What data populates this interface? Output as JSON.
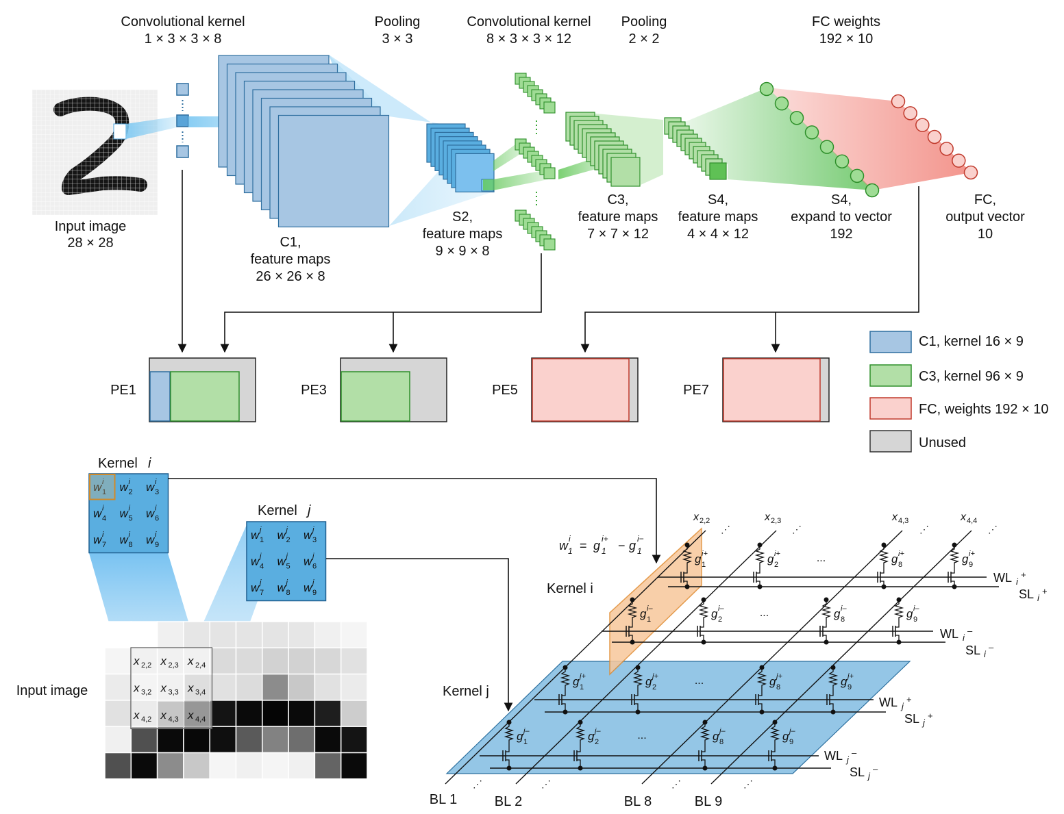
{
  "colors": {
    "c1_fill": "#a7c6e3",
    "c1_stroke": "#2f6f9f",
    "c3_fill": "#b2dfa7",
    "c3_stroke": "#2e8f2a",
    "fc_fill": "#fad1cd",
    "fc_stroke": "#c0392b",
    "unused_fill": "#d6d6d6",
    "kernel_blue": "#5aaee0",
    "array_blue": "#94c6e6",
    "highlight_orange": "#f7c79b"
  },
  "top": {
    "conv1": {
      "title": "Convolutional kernel",
      "size": "1 × 3 × 3 × 8"
    },
    "pool1": {
      "title": "Pooling",
      "size": "3 × 3"
    },
    "conv2": {
      "title": "Convolutional kernel",
      "size": "8 × 3 × 3 × 12"
    },
    "pool2": {
      "title": "Pooling",
      "size": "2 × 2"
    },
    "fc": {
      "title": "FC weights",
      "size": "192 × 10"
    },
    "input": {
      "line1": "Input image",
      "line2": "28 × 28"
    },
    "c1": {
      "line1": "C1,",
      "line2": "feature maps",
      "line3": "26 × 26 × 8"
    },
    "s2": {
      "line1": "S2,",
      "line2": "feature maps",
      "line3": "9 × 9 × 8"
    },
    "c3": {
      "line1": "C3,",
      "line2": "feature maps",
      "line3": "7 × 7 × 12"
    },
    "s4": {
      "line1": "S4,",
      "line2": "feature maps",
      "line3": "4 × 4 × 12"
    },
    "s4v": {
      "line1": "S4,",
      "line2": "expand to vector",
      "line3": "192"
    },
    "fcout": {
      "line1": "FC,",
      "line2": "output vector",
      "line3": "10"
    }
  },
  "pe": [
    "PE1",
    "PE3",
    "PE5",
    "PE7"
  ],
  "legend": [
    {
      "label": "C1, kernel 16 × 9",
      "key": "c1"
    },
    {
      "label": "C3, kernel 96 × 9",
      "key": "c3"
    },
    {
      "label": "FC, weights 192 × 10",
      "key": "fc"
    },
    {
      "label": "Unused",
      "key": "unused"
    }
  ],
  "kernel_i": {
    "title": "Kernel",
    "var": "i"
  },
  "kernel_j": {
    "title": "Kernel",
    "var": "j"
  },
  "input_image_label": "Input image",
  "patch": [
    [
      "2,2",
      "2,3",
      "2,4"
    ],
    [
      "3,2",
      "3,3",
      "3,4"
    ],
    [
      "4,2",
      "4,3",
      "4,4"
    ]
  ],
  "pixel_grid": [
    [
      255,
      255,
      240,
      230,
      228,
      228,
      228,
      230,
      240,
      245
    ],
    [
      245,
      225,
      225,
      225,
      218,
      218,
      210,
      210,
      215,
      225
    ],
    [
      235,
      230,
      225,
      228,
      225,
      220,
      140,
      200,
      225,
      235
    ],
    [
      225,
      210,
      195,
      120,
      20,
      10,
      5,
      10,
      30,
      205
    ],
    [
      240,
      80,
      10,
      8,
      15,
      90,
      130,
      110,
      10,
      20
    ],
    [
      80,
      10,
      140,
      200,
      245,
      240,
      245,
      240,
      100,
      10
    ]
  ],
  "crossbar": {
    "x_labels": [
      "x2,2",
      "x2,3",
      "x4,3",
      "x4,4"
    ],
    "ellipsis": "...",
    "weight_eq": {
      "w": "w",
      "sub": "1",
      "sup": "i",
      "rhs1": "g",
      "rhs2": "g"
    },
    "kernel_i_label": "Kernel i",
    "kernel_j_label": "Kernel j",
    "rows": [
      {
        "wl": "WL",
        "sl": "SL",
        "sub": "i",
        "sign": "+"
      },
      {
        "wl": "WL",
        "sl": "SL",
        "sub": "i",
        "sign": "–"
      },
      {
        "wl": "WL",
        "sl": "SL",
        "sub": "j",
        "sign": "+"
      },
      {
        "wl": "WL",
        "sl": "SL",
        "sub": "j",
        "sign": "–"
      }
    ],
    "g_subs": [
      "1",
      "2",
      "8",
      "9"
    ],
    "bl_labels": [
      "BL 1",
      "BL 2",
      "BL 8",
      "BL 9"
    ]
  }
}
